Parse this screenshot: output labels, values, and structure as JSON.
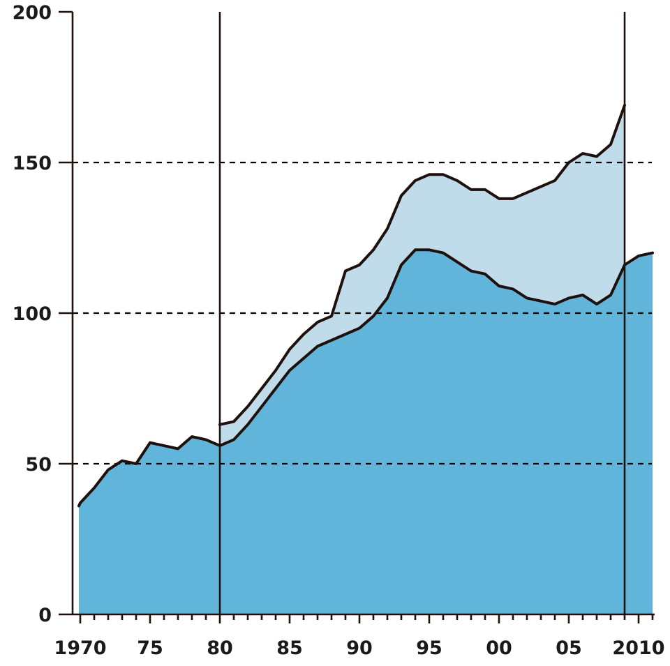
{
  "chart_data": {
    "type": "area",
    "title": "",
    "xlabel": "",
    "ylabel": "",
    "xlim": [
      1969.9,
      2011.1
    ],
    "ylim": [
      0,
      200
    ],
    "grid": "horizontal dashed",
    "y_ticks": [
      0,
      50,
      100,
      150,
      200
    ],
    "y_dashed_gridlines": [
      50,
      100,
      150
    ],
    "y_tick_labels": [
      "0",
      "50",
      "100",
      "150",
      "200"
    ],
    "x_ticks": [
      1970,
      1975,
      1980,
      1985,
      1990,
      1995,
      2000,
      2005,
      2010
    ],
    "x_tick_labels": [
      "1970",
      "75",
      "80",
      "85",
      "90",
      "95",
      "00",
      "05",
      "2010"
    ],
    "vertical_dividers": [
      1980,
      2009
    ],
    "colors": {
      "lower": "#62b5da",
      "upper": "#c0dbea",
      "line": "#1e100c"
    },
    "x": [
      1969.9,
      1970,
      1971,
      1972,
      1973,
      1974,
      1975,
      1976,
      1977,
      1978,
      1979,
      1980,
      1981,
      1982,
      1983,
      1984,
      1985,
      1986,
      1987,
      1988,
      1989,
      1990,
      1991,
      1992,
      1993,
      1994,
      1995,
      1996,
      1997,
      1998,
      1999,
      2000,
      2001,
      2002,
      2003,
      2004,
      2005,
      2006,
      2007,
      2008,
      2009,
      2010,
      2011
    ],
    "series": [
      {
        "values": [
          36,
          37,
          42,
          48,
          51,
          50,
          57,
          56,
          55,
          59,
          58,
          56,
          58,
          63,
          69,
          75,
          81,
          85,
          89,
          91,
          93,
          95,
          99,
          105,
          116,
          121,
          121,
          120,
          117,
          114,
          113,
          109,
          108,
          105,
          104,
          103,
          105,
          106,
          103,
          106,
          116,
          119,
          120
        ]
      },
      {
        "x": [
          1980,
          1981,
          1982,
          1983,
          1984,
          1985,
          1986,
          1987,
          1988,
          1989,
          1990,
          1991,
          1992,
          1993,
          1994,
          1995,
          1996,
          1997,
          1998,
          1999,
          2000,
          2001,
          2002,
          2003,
          2004,
          2005,
          2006,
          2007,
          2008,
          2009
        ],
        "values": [
          63,
          64,
          69,
          75,
          81,
          88,
          93,
          97,
          99,
          114,
          116,
          121,
          128,
          139,
          144,
          146,
          146,
          144,
          141,
          141,
          138,
          138,
          140,
          142,
          144,
          150,
          153,
          152,
          156,
          169
        ]
      }
    ]
  }
}
